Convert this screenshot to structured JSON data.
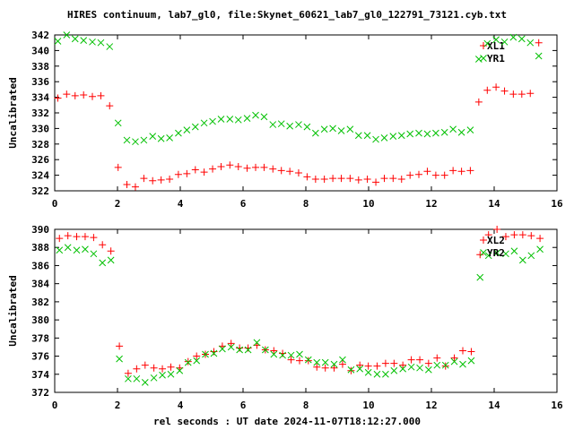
{
  "chart_data": [
    {
      "type": "scatter",
      "title": "HIRES continuum, lab7_gl0, file:Skynet_60621_lab7_gl0_122791_73121.cyb.txt",
      "ylabel": "Uncalibrated",
      "xlabel": "",
      "xlim": [
        0,
        16
      ],
      "ylim": [
        322,
        342
      ],
      "xticks": [
        0,
        2,
        4,
        6,
        8,
        10,
        12,
        14,
        16
      ],
      "yticks": [
        322,
        324,
        326,
        328,
        330,
        332,
        334,
        336,
        338,
        340,
        342
      ],
      "grid": false,
      "legend": "top-right",
      "series": [
        {
          "name": "XL1",
          "marker": "plus",
          "color": "#ff0000",
          "points": [
            [
              0.1,
              333.9
            ],
            [
              0.38,
              334.4
            ],
            [
              0.65,
              334.2
            ],
            [
              0.92,
              334.3
            ],
            [
              1.2,
              334.1
            ],
            [
              1.47,
              334.2
            ],
            [
              1.75,
              332.9
            ],
            [
              2.02,
              325.0
            ],
            [
              2.3,
              322.8
            ],
            [
              2.57,
              322.5
            ],
            [
              2.84,
              323.6
            ],
            [
              3.12,
              323.3
            ],
            [
              3.39,
              323.4
            ],
            [
              3.66,
              323.5
            ],
            [
              3.94,
              324.1
            ],
            [
              4.21,
              324.2
            ],
            [
              4.48,
              324.7
            ],
            [
              4.76,
              324.4
            ],
            [
              5.03,
              324.8
            ],
            [
              5.3,
              325.1
            ],
            [
              5.58,
              325.3
            ],
            [
              5.85,
              325.1
            ],
            [
              6.13,
              324.9
            ],
            [
              6.4,
              325.0
            ],
            [
              6.67,
              325.0
            ],
            [
              6.95,
              324.8
            ],
            [
              7.22,
              324.6
            ],
            [
              7.49,
              324.5
            ],
            [
              7.77,
              324.3
            ],
            [
              8.04,
              323.8
            ],
            [
              8.31,
              323.5
            ],
            [
              8.59,
              323.5
            ],
            [
              8.86,
              323.6
            ],
            [
              9.13,
              323.6
            ],
            [
              9.41,
              323.6
            ],
            [
              9.68,
              323.4
            ],
            [
              9.96,
              323.5
            ],
            [
              10.23,
              323.1
            ],
            [
              10.5,
              323.6
            ],
            [
              10.78,
              323.6
            ],
            [
              11.05,
              323.5
            ],
            [
              11.32,
              324.0
            ],
            [
              11.6,
              324.1
            ],
            [
              11.87,
              324.5
            ],
            [
              12.14,
              324.0
            ],
            [
              12.42,
              324.0
            ],
            [
              12.69,
              324.6
            ],
            [
              12.96,
              324.5
            ],
            [
              13.24,
              324.6
            ],
            [
              13.51,
              333.4
            ],
            [
              13.78,
              334.9
            ],
            [
              14.06,
              335.3
            ],
            [
              14.33,
              334.8
            ],
            [
              14.61,
              334.4
            ],
            [
              14.88,
              334.4
            ],
            [
              15.15,
              334.5
            ],
            [
              15.42,
              341.0
            ]
          ]
        },
        {
          "name": "YR1",
          "marker": "cross",
          "color": "#00c000",
          "points": [
            [
              0.1,
              341.2
            ],
            [
              0.38,
              342.0
            ],
            [
              0.65,
              341.5
            ],
            [
              0.92,
              341.3
            ],
            [
              1.2,
              341.1
            ],
            [
              1.47,
              341.0
            ],
            [
              1.75,
              340.5
            ],
            [
              2.02,
              330.7
            ],
            [
              2.3,
              328.5
            ],
            [
              2.57,
              328.3
            ],
            [
              2.84,
              328.5
            ],
            [
              3.12,
              329.0
            ],
            [
              3.39,
              328.7
            ],
            [
              3.66,
              328.8
            ],
            [
              3.94,
              329.4
            ],
            [
              4.21,
              329.8
            ],
            [
              4.48,
              330.2
            ],
            [
              4.76,
              330.7
            ],
            [
              5.03,
              330.9
            ],
            [
              5.3,
              331.2
            ],
            [
              5.58,
              331.2
            ],
            [
              5.85,
              331.1
            ],
            [
              6.13,
              331.3
            ],
            [
              6.4,
              331.7
            ],
            [
              6.67,
              331.5
            ],
            [
              6.95,
              330.5
            ],
            [
              7.22,
              330.6
            ],
            [
              7.49,
              330.3
            ],
            [
              7.77,
              330.5
            ],
            [
              8.04,
              330.2
            ],
            [
              8.31,
              329.4
            ],
            [
              8.59,
              329.9
            ],
            [
              8.86,
              330.0
            ],
            [
              9.13,
              329.7
            ],
            [
              9.41,
              329.9
            ],
            [
              9.68,
              329.1
            ],
            [
              9.96,
              329.1
            ],
            [
              10.23,
              328.6
            ],
            [
              10.5,
              328.8
            ],
            [
              10.78,
              329.0
            ],
            [
              11.05,
              329.1
            ],
            [
              11.32,
              329.3
            ],
            [
              11.6,
              329.4
            ],
            [
              11.87,
              329.3
            ],
            [
              12.14,
              329.4
            ],
            [
              12.42,
              329.5
            ],
            [
              12.69,
              329.9
            ],
            [
              12.96,
              329.5
            ],
            [
              13.24,
              329.8
            ],
            [
              13.51,
              338.9
            ],
            [
              13.78,
              340.9
            ],
            [
              14.06,
              341.4
            ],
            [
              14.33,
              341.1
            ],
            [
              14.61,
              341.7
            ],
            [
              14.88,
              341.5
            ],
            [
              15.15,
              341.0
            ],
            [
              15.42,
              339.3
            ]
          ]
        }
      ]
    },
    {
      "type": "scatter",
      "title": "",
      "ylabel": "Uncalibrated",
      "xlabel": "rel seconds : UT date 2024-11-07T18:12:27.000",
      "xlim": [
        0,
        16
      ],
      "ylim": [
        372,
        390
      ],
      "xticks": [
        0,
        2,
        4,
        6,
        8,
        10,
        12,
        14,
        16
      ],
      "yticks": [
        372,
        374,
        376,
        378,
        380,
        382,
        384,
        386,
        388,
        390
      ],
      "grid": false,
      "legend": "top-right",
      "series": [
        {
          "name": "XL2",
          "marker": "plus",
          "color": "#ff0000",
          "points": [
            [
              0.15,
              389.0
            ],
            [
              0.42,
              389.3
            ],
            [
              0.7,
              389.2
            ],
            [
              0.97,
              389.2
            ],
            [
              1.24,
              389.1
            ],
            [
              1.52,
              388.3
            ],
            [
              1.79,
              387.6
            ],
            [
              2.06,
              377.1
            ],
            [
              2.34,
              374.1
            ],
            [
              2.61,
              374.6
            ],
            [
              2.88,
              375.0
            ],
            [
              3.16,
              374.7
            ],
            [
              3.43,
              374.6
            ],
            [
              3.7,
              374.8
            ],
            [
              3.98,
              374.7
            ],
            [
              4.25,
              375.4
            ],
            [
              4.52,
              376.0
            ],
            [
              4.8,
              376.2
            ],
            [
              5.07,
              376.5
            ],
            [
              5.34,
              377.1
            ],
            [
              5.62,
              377.4
            ],
            [
              5.89,
              376.9
            ],
            [
              6.16,
              376.9
            ],
            [
              6.44,
              377.2
            ],
            [
              6.71,
              376.7
            ],
            [
              6.98,
              376.6
            ],
            [
              7.26,
              376.3
            ],
            [
              7.53,
              375.6
            ],
            [
              7.8,
              375.5
            ],
            [
              8.08,
              375.5
            ],
            [
              8.35,
              374.8
            ],
            [
              8.62,
              374.7
            ],
            [
              8.9,
              374.7
            ],
            [
              9.17,
              375.1
            ],
            [
              9.44,
              374.4
            ],
            [
              9.72,
              375.0
            ],
            [
              9.99,
              374.9
            ],
            [
              10.27,
              374.9
            ],
            [
              10.54,
              375.2
            ],
            [
              10.81,
              375.2
            ],
            [
              11.09,
              375.0
            ],
            [
              11.36,
              375.6
            ],
            [
              11.63,
              375.6
            ],
            [
              11.91,
              375.2
            ],
            [
              12.18,
              375.8
            ],
            [
              12.45,
              374.9
            ],
            [
              12.73,
              375.8
            ],
            [
              13.0,
              376.6
            ],
            [
              13.27,
              376.5
            ],
            [
              13.55,
              387.2
            ],
            [
              13.82,
              389.4
            ],
            [
              14.09,
              390.0
            ],
            [
              14.37,
              389.2
            ],
            [
              14.64,
              389.4
            ],
            [
              14.91,
              389.4
            ],
            [
              15.18,
              389.3
            ],
            [
              15.46,
              389.0
            ]
          ]
        },
        {
          "name": "YR2",
          "marker": "cross",
          "color": "#00c000",
          "points": [
            [
              0.15,
              387.7
            ],
            [
              0.42,
              388.0
            ],
            [
              0.7,
              387.7
            ],
            [
              0.97,
              387.8
            ],
            [
              1.24,
              387.3
            ],
            [
              1.52,
              386.3
            ],
            [
              1.79,
              386.6
            ],
            [
              2.06,
              375.7
            ],
            [
              2.34,
              373.5
            ],
            [
              2.61,
              373.5
            ],
            [
              2.88,
              373.1
            ],
            [
              3.16,
              373.6
            ],
            [
              3.43,
              373.9
            ],
            [
              3.7,
              374.0
            ],
            [
              3.98,
              374.4
            ],
            [
              4.25,
              375.3
            ],
            [
              4.52,
              375.5
            ],
            [
              4.8,
              376.2
            ],
            [
              5.07,
              376.3
            ],
            [
              5.34,
              376.8
            ],
            [
              5.62,
              377.0
            ],
            [
              5.89,
              376.7
            ],
            [
              6.16,
              376.7
            ],
            [
              6.44,
              377.5
            ],
            [
              6.71,
              376.7
            ],
            [
              6.98,
              376.2
            ],
            [
              7.26,
              376.1
            ],
            [
              7.53,
              376.1
            ],
            [
              7.8,
              376.2
            ],
            [
              8.08,
              375.6
            ],
            [
              8.35,
              375.3
            ],
            [
              8.62,
              375.3
            ],
            [
              8.9,
              375.1
            ],
            [
              9.17,
              375.6
            ],
            [
              9.44,
              374.5
            ],
            [
              9.72,
              374.6
            ],
            [
              9.99,
              374.2
            ],
            [
              10.27,
              374.0
            ],
            [
              10.54,
              374.0
            ],
            [
              10.81,
              374.4
            ],
            [
              11.09,
              374.6
            ],
            [
              11.36,
              374.8
            ],
            [
              11.63,
              374.7
            ],
            [
              11.91,
              374.5
            ],
            [
              12.18,
              375.0
            ],
            [
              12.45,
              375.0
            ],
            [
              12.73,
              375.4
            ],
            [
              13.0,
              375.1
            ],
            [
              13.27,
              375.5
            ],
            [
              13.55,
              384.7
            ],
            [
              13.82,
              387.1
            ],
            [
              14.09,
              387.4
            ],
            [
              14.37,
              387.3
            ],
            [
              14.64,
              387.6
            ],
            [
              14.91,
              386.6
            ],
            [
              15.18,
              387.1
            ],
            [
              15.46,
              387.8
            ]
          ]
        }
      ]
    }
  ]
}
